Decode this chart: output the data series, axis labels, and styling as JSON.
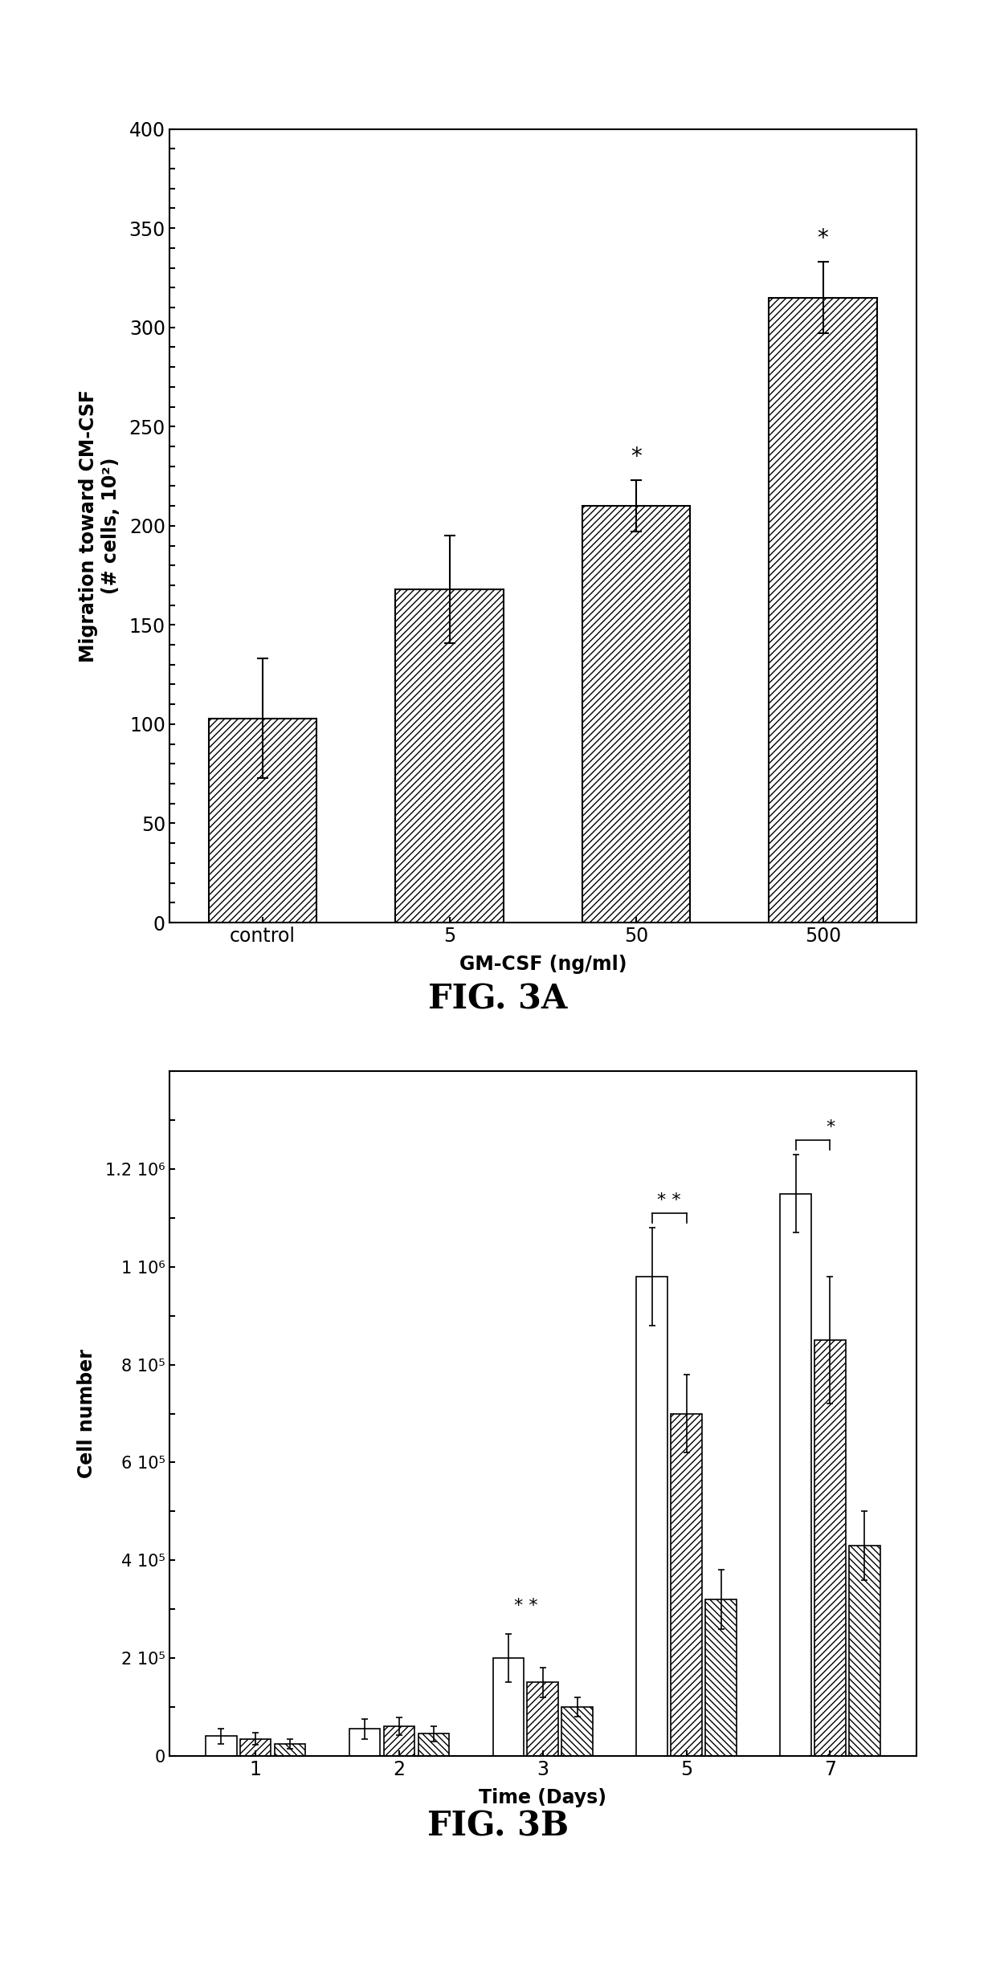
{
  "fig3a": {
    "categories": [
      "control",
      "5",
      "50",
      "500"
    ],
    "values": [
      103,
      168,
      210,
      315
    ],
    "errors": [
      30,
      27,
      13,
      18
    ],
    "ylabel": "Migration toward CM-CSF\n(# cells, 10²)",
    "xlabel": "GM-CSF (ng/ml)",
    "ylim": [
      0,
      400
    ],
    "yticks": [
      0,
      50,
      100,
      150,
      200,
      250,
      300,
      350,
      400
    ],
    "title": "FIG. 3A",
    "asterisks": [
      null,
      null,
      "*",
      "*"
    ],
    "hatch": "////"
  },
  "fig3b": {
    "days": [
      1,
      2,
      3,
      5,
      7
    ],
    "n_groups": 3,
    "values": [
      [
        40000,
        35000,
        25000
      ],
      [
        55000,
        60000,
        45000
      ],
      [
        200000,
        150000,
        100000
      ],
      [
        980000,
        700000,
        320000
      ],
      [
        1150000,
        850000,
        430000
      ]
    ],
    "errors": [
      [
        15000,
        12000,
        10000
      ],
      [
        20000,
        18000,
        15000
      ],
      [
        50000,
        30000,
        20000
      ],
      [
        100000,
        80000,
        60000
      ],
      [
        80000,
        130000,
        70000
      ]
    ],
    "ylabel": "Cell number",
    "xlabel": "Time (Days)",
    "ylim": [
      0,
      1400000
    ],
    "ytick_labels": [
      "0",
      "2 10⁵",
      "4 10⁵",
      "6 10⁵",
      "8 10⁵",
      "1 10⁶",
      "1.2 10⁶"
    ],
    "ytick_values": [
      0,
      200000,
      400000,
      600000,
      800000,
      1000000,
      1200000
    ],
    "title": "FIG. 3B",
    "double_asterisks_days": [
      3,
      5
    ],
    "single_asterisk_days": [
      7
    ],
    "bar_hatches": [
      "",
      "////",
      "\\\\\\\\"
    ],
    "bracket_days": [
      5,
      7
    ]
  },
  "background_color": "#ffffff"
}
